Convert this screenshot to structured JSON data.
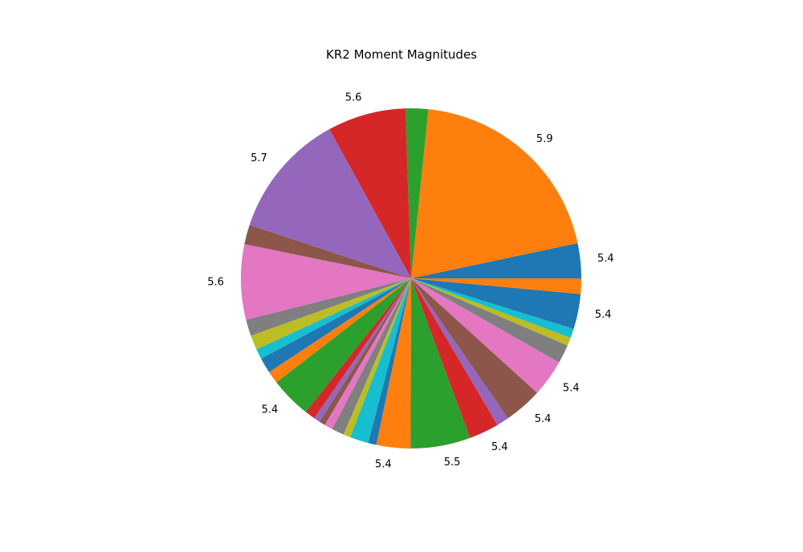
{
  "chart_data": {
    "type": "pie",
    "title": "KR2 Moment Magnitudes",
    "start_angle_deg": 0,
    "direction": "counterclockwise",
    "colors": [
      "#1f77b4",
      "#ff7f0e",
      "#2ca02c",
      "#d62728",
      "#9467bd",
      "#8c564b",
      "#e377c2",
      "#7f7f7f",
      "#bcbd22",
      "#17becf"
    ],
    "slices": [
      {
        "value": 3.4,
        "label": "5.4"
      },
      {
        "value": 20.5,
        "label": "5.9"
      },
      {
        "value": 2.2,
        "label": ""
      },
      {
        "value": 7.6,
        "label": "5.6"
      },
      {
        "value": 12.2,
        "label": "5.7"
      },
      {
        "value": 1.9,
        "label": ""
      },
      {
        "value": 7.3,
        "label": "5.6"
      },
      {
        "value": 1.6,
        "label": ""
      },
      {
        "value": 1.4,
        "label": ""
      },
      {
        "value": 1.0,
        "label": ""
      },
      {
        "value": 1.5,
        "label": ""
      },
      {
        "value": 1.2,
        "label": ""
      },
      {
        "value": 4.0,
        "label": "5.4"
      },
      {
        "value": 1.0,
        "label": ""
      },
      {
        "value": 0.6,
        "label": ""
      },
      {
        "value": 0.6,
        "label": ""
      },
      {
        "value": 0.8,
        "label": ""
      },
      {
        "value": 1.2,
        "label": ""
      },
      {
        "value": 0.7,
        "label": ""
      },
      {
        "value": 1.8,
        "label": ""
      },
      {
        "value": 0.8,
        "label": ""
      },
      {
        "value": 3.3,
        "label": "5.4"
      },
      {
        "value": 5.8,
        "label": "5.5"
      },
      {
        "value": 2.9,
        "label": "5.4"
      },
      {
        "value": 1.2,
        "label": ""
      },
      {
        "value": 3.7,
        "label": "5.4"
      },
      {
        "value": 3.6,
        "label": "5.4"
      },
      {
        "value": 1.8,
        "label": ""
      },
      {
        "value": 0.8,
        "label": ""
      },
      {
        "value": 0.9,
        "label": ""
      },
      {
        "value": 3.4,
        "label": "5.4"
      },
      {
        "value": 1.5,
        "label": ""
      }
    ]
  }
}
